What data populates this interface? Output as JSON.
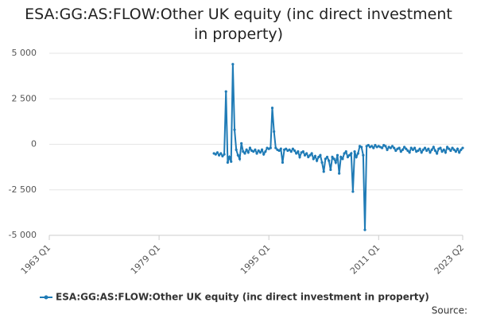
{
  "chart_data": {
    "type": "line",
    "title": "ESA:GG:AS:FLOW:Other UK equity (inc direct investment in property)",
    "source_label": "Source:",
    "xlim": [
      1963,
      2023.25
    ],
    "xticks": [
      {
        "value": 1963,
        "label": "1963 Q1"
      },
      {
        "value": 1979,
        "label": "1979 Q1"
      },
      {
        "value": 1995,
        "label": "1995 Q1"
      },
      {
        "value": 2011,
        "label": "2011 Q1"
      },
      {
        "value": 2023.25,
        "label": "2023 Q2"
      }
    ],
    "ylim": [
      -5000,
      5000
    ],
    "yticks": [
      {
        "value": -5000,
        "label": "-5 000"
      },
      {
        "value": -2500,
        "label": "-2 500"
      },
      0,
      {
        "value": 2500,
        "label": "2 500"
      },
      {
        "value": 5000,
        "label": "5 000"
      }
    ],
    "grid": true,
    "x": [
      1987,
      1987.25,
      1987.5,
      1987.75,
      1988,
      1988.25,
      1988.5,
      1988.75,
      1989,
      1989.25,
      1989.5,
      1989.75,
      1990,
      1990.25,
      1990.5,
      1990.75,
      1991,
      1991.25,
      1991.5,
      1991.75,
      1992,
      1992.25,
      1992.5,
      1992.75,
      1993,
      1993.25,
      1993.5,
      1993.75,
      1994,
      1994.25,
      1994.5,
      1994.75,
      1995,
      1995.25,
      1995.5,
      1995.75,
      1996,
      1996.25,
      1996.5,
      1996.75,
      1997,
      1997.25,
      1997.5,
      1997.75,
      1998,
      1998.25,
      1998.5,
      1998.75,
      1999,
      1999.25,
      1999.5,
      1999.75,
      2000,
      2000.25,
      2000.5,
      2000.75,
      2001,
      2001.25,
      2001.5,
      2001.75,
      2002,
      2002.25,
      2002.5,
      2002.75,
      2003,
      2003.25,
      2003.5,
      2003.75,
      2004,
      2004.25,
      2004.5,
      2004.75,
      2005,
      2005.25,
      2005.5,
      2005.75,
      2006,
      2006.25,
      2006.5,
      2006.75,
      2007,
      2007.25,
      2007.5,
      2007.75,
      2008,
      2008.25,
      2008.5,
      2008.75,
      2009,
      2009.25,
      2009.5,
      2009.75,
      2010,
      2010.25,
      2010.5,
      2010.75,
      2011,
      2011.25,
      2011.5,
      2011.75,
      2012,
      2012.25,
      2012.5,
      2012.75,
      2013,
      2013.25,
      2013.5,
      2013.75,
      2014,
      2014.25,
      2014.5,
      2014.75,
      2015,
      2015.25,
      2015.5,
      2015.75,
      2016,
      2016.25,
      2016.5,
      2016.75,
      2017,
      2017.25,
      2017.5,
      2017.75,
      2018,
      2018.25,
      2018.5,
      2018.75,
      2019,
      2019.25,
      2019.5,
      2019.75,
      2020,
      2020.25,
      2020.5,
      2020.75,
      2021,
      2021.25,
      2021.5,
      2021.75,
      2022,
      2022.25,
      2022.5,
      2022.75,
      2023,
      2023.25
    ],
    "series": [
      {
        "name": "ESA:GG:AS:FLOW:Other UK equity (inc direct investment in property)",
        "color": "#1f7bb6",
        "values": [
          -500,
          -550,
          -450,
          -600,
          -500,
          -650,
          -550,
          2900,
          -1000,
          -700,
          -950,
          4400,
          800,
          -300,
          -600,
          -800,
          50,
          -400,
          -500,
          -300,
          -450,
          -200,
          -350,
          -400,
          -300,
          -500,
          -350,
          -450,
          -300,
          -550,
          -400,
          -200,
          -250,
          -200,
          2000,
          700,
          -200,
          -300,
          -350,
          -250,
          -1000,
          -300,
          -250,
          -350,
          -300,
          -400,
          -250,
          -350,
          -500,
          -400,
          -700,
          -450,
          -400,
          -600,
          -500,
          -700,
          -600,
          -500,
          -800,
          -650,
          -900,
          -700,
          -600,
          -1000,
          -1500,
          -800,
          -700,
          -900,
          -1400,
          -700,
          -800,
          -1000,
          -600,
          -1600,
          -700,
          -800,
          -500,
          -400,
          -700,
          -600,
          -500,
          -2600,
          -400,
          -700,
          -500,
          -100,
          -150,
          -600,
          -4700,
          -100,
          -50,
          -150,
          -100,
          -200,
          -50,
          -150,
          -100,
          -150,
          -200,
          -50,
          -100,
          -300,
          -150,
          -200,
          -100,
          -200,
          -350,
          -250,
          -200,
          -400,
          -300,
          -150,
          -250,
          -350,
          -450,
          -200,
          -300,
          -200,
          -400,
          -350,
          -250,
          -450,
          -300,
          -200,
          -350,
          -250,
          -450,
          -300,
          -150,
          -350,
          -500,
          -250,
          -200,
          -400,
          -300,
          -450,
          -150,
          -250,
          -350,
          -200,
          -300,
          -400,
          -250,
          -450,
          -300,
          -200
        ]
      }
    ]
  }
}
